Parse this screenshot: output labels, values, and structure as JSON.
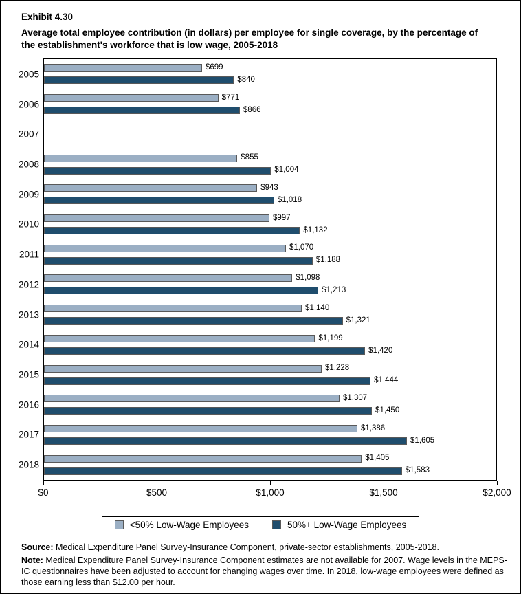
{
  "header": {
    "exhibit_label": "Exhibit 4.30",
    "title": "Average total employee contribution (in dollars) per employee for single coverage, by the percentage of the establishment's workforce that is low wage, 2005-2018"
  },
  "chart_data": {
    "type": "bar",
    "orientation": "horizontal",
    "title": "Average total employee contribution (in dollars) per employee for single coverage, by the percentage of the establishment's workforce that is low wage, 2005-2018",
    "categories": [
      "2005",
      "2006",
      "2007",
      "2008",
      "2009",
      "2010",
      "2011",
      "2012",
      "2013",
      "2014",
      "2015",
      "2016",
      "2017",
      "2018"
    ],
    "series": [
      {
        "name": "<50% Low-Wage Employees",
        "key": "under50",
        "color": "#9BAFC4",
        "values": [
          699,
          771,
          null,
          855,
          943,
          997,
          1070,
          1098,
          1140,
          1199,
          1228,
          1307,
          1386,
          1405
        ]
      },
      {
        "name": "50%+ Low-Wage Employees",
        "key": "over50",
        "color": "#1F4D6D",
        "values": [
          840,
          866,
          null,
          1004,
          1018,
          1132,
          1188,
          1213,
          1321,
          1420,
          1444,
          1450,
          1605,
          1583
        ]
      }
    ],
    "value_prefix": "$",
    "xlim": [
      0,
      2000
    ],
    "x_ticks": [
      {
        "value": 0,
        "label": "$0"
      },
      {
        "value": 500,
        "label": "$500"
      },
      {
        "value": 1000,
        "label": "$1,000"
      },
      {
        "value": 1500,
        "label": "$1,500"
      },
      {
        "value": 2000,
        "label": "$2,000"
      }
    ],
    "grid": false,
    "legend_position": "bottom"
  },
  "footer": {
    "source_label": "Source:",
    "source_text": " Medical Expenditure Panel Survey-Insurance Component, private-sector establishments, 2005-2018.",
    "note_label": "Note:",
    "note_text": " Medical Expenditure Panel Survey-Insurance Component estimates are not available for 2007. Wage levels in the MEPS-IC questionnaires have been adjusted to account for changing wages over time. In 2018, low-wage employees were defined as those earning less than $12.00 per hour."
  },
  "colors": {
    "bar_border": "#595959",
    "axis": "#000000",
    "background": "#FFFFFF"
  }
}
